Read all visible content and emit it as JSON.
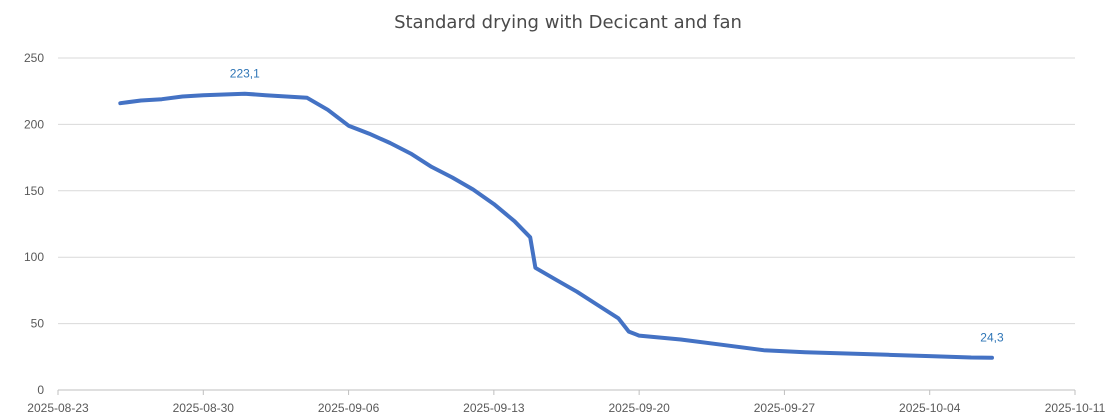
{
  "chart_data": {
    "type": "line",
    "title": "Standard drying with Decicant and fan",
    "xlabel": "",
    "ylabel": "",
    "x_axis_type": "date",
    "xlim": [
      "2025-08-23",
      "2025-10-11"
    ],
    "ylim": [
      0,
      250
    ],
    "x_ticks": [
      "2025-08-23",
      "2025-08-30",
      "2025-09-06",
      "2025-09-13",
      "2025-09-20",
      "2025-09-27",
      "2025-10-04",
      "2025-10-11"
    ],
    "x_tick_labels": [
      "2025-08-23",
      "2025-08-30",
      "2025-09-06",
      "2025-09-13",
      "2025-09-20",
      "2025-09-27",
      "2025-10-04",
      "2025-10-11"
    ],
    "y_ticks": [
      0,
      50,
      100,
      150,
      200,
      250
    ],
    "grid": "horizontal",
    "legend": "none",
    "colors": {
      "line": "#4472c4",
      "data_label": "#2e75b6",
      "grid": "#d9d9d9",
      "text": "#595959"
    },
    "series": [
      {
        "points": [
          [
            "2025-08-26",
            216
          ],
          [
            "2025-08-27",
            218
          ],
          [
            "2025-08-28",
            219
          ],
          [
            "2025-08-29",
            221
          ],
          [
            "2025-08-30",
            222
          ],
          [
            "2025-08-31",
            222.5
          ],
          [
            "2025-09-01",
            223.1
          ],
          [
            "2025-09-02",
            222
          ],
          [
            "2025-09-03",
            221
          ],
          [
            "2025-09-04",
            220
          ],
          [
            "2025-09-05",
            211
          ],
          [
            "2025-09-06",
            199
          ],
          [
            "2025-09-07",
            193
          ],
          [
            "2025-09-08",
            186
          ],
          [
            "2025-09-09",
            178
          ],
          [
            "2025-09-10",
            168
          ],
          [
            "2025-09-11",
            160
          ],
          [
            "2025-09-12",
            151
          ],
          [
            "2025-09-13",
            140
          ],
          [
            "2025-09-14",
            127
          ],
          [
            "2025-09-14T18:00",
            115
          ],
          [
            "2025-09-15",
            92
          ],
          [
            "2025-09-16",
            83
          ],
          [
            "2025-09-17",
            74
          ],
          [
            "2025-09-18",
            64
          ],
          [
            "2025-09-19",
            54
          ],
          [
            "2025-09-19T12:00",
            44
          ],
          [
            "2025-09-20",
            41
          ],
          [
            "2025-09-22",
            38
          ],
          [
            "2025-09-24",
            34
          ],
          [
            "2025-09-26",
            30
          ],
          [
            "2025-09-28",
            28.5
          ],
          [
            "2025-09-30",
            27.5
          ],
          [
            "2025-10-02",
            26.5
          ],
          [
            "2025-10-04",
            25.5
          ],
          [
            "2025-10-06",
            24.5
          ],
          [
            "2025-10-07",
            24.3
          ]
        ]
      }
    ],
    "data_labels": [
      {
        "text": "223,1",
        "x": "2025-09-01",
        "y": 223.1
      },
      {
        "text": "24,3",
        "x": "2025-10-07",
        "y": 24.3
      }
    ]
  }
}
